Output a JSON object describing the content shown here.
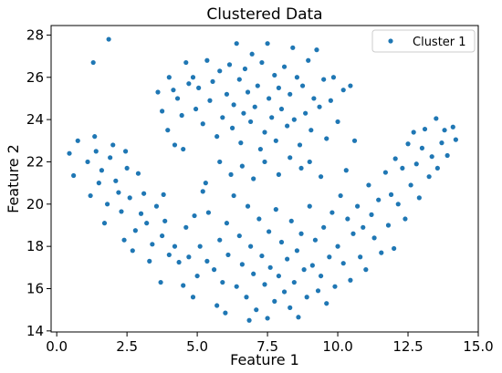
{
  "chart_data": {
    "type": "scatter",
    "title": "Clustered Data",
    "xlabel": "Feature 1",
    "ylabel": "Feature 2",
    "xlim": [
      -0.2,
      15.0
    ],
    "ylim": [
      13.95,
      28.45
    ],
    "xticks": [
      0.0,
      2.5,
      5.0,
      7.5,
      10.0,
      12.5,
      15.0
    ],
    "xtick_labels": [
      "0.0",
      "2.5",
      "5.0",
      "7.5",
      "10.0",
      "12.5",
      "15.0"
    ],
    "yticks": [
      14,
      16,
      18,
      20,
      22,
      24,
      26,
      28
    ],
    "ytick_labels": [
      "14",
      "16",
      "18",
      "20",
      "22",
      "24",
      "26",
      "28"
    ],
    "grid": false,
    "legend": "top-right",
    "series": [
      {
        "name": "Cluster 1",
        "color": "#1f77b4",
        "points": [
          [
            1.85,
            27.8
          ],
          [
            1.3,
            26.7
          ],
          [
            0.45,
            22.4
          ],
          [
            0.6,
            21.35
          ],
          [
            0.75,
            23.0
          ],
          [
            1.1,
            22.0
          ],
          [
            1.2,
            20.4
          ],
          [
            1.35,
            23.2
          ],
          [
            1.4,
            22.5
          ],
          [
            1.5,
            21.0
          ],
          [
            1.6,
            21.6
          ],
          [
            1.7,
            19.1
          ],
          [
            1.8,
            20.0
          ],
          [
            1.9,
            22.2
          ],
          [
            2.0,
            22.8
          ],
          [
            2.1,
            21.1
          ],
          [
            2.2,
            20.55
          ],
          [
            2.3,
            19.65
          ],
          [
            2.4,
            18.3
          ],
          [
            2.45,
            22.5
          ],
          [
            2.5,
            21.7
          ],
          [
            2.6,
            20.3
          ],
          [
            2.7,
            17.8
          ],
          [
            2.8,
            18.75
          ],
          [
            2.9,
            21.45
          ],
          [
            3.0,
            19.55
          ],
          [
            3.1,
            20.5
          ],
          [
            3.2,
            19.1
          ],
          [
            3.3,
            17.3
          ],
          [
            3.4,
            18.1
          ],
          [
            3.55,
            19.9
          ],
          [
            3.7,
            16.3
          ],
          [
            3.75,
            18.5
          ],
          [
            3.8,
            20.45
          ],
          [
            3.85,
            19.2
          ],
          [
            4.0,
            17.6
          ],
          [
            4.2,
            18.0
          ],
          [
            4.35,
            17.25
          ],
          [
            4.5,
            16.15
          ],
          [
            4.6,
            18.9
          ],
          [
            4.7,
            17.5
          ],
          [
            4.85,
            15.6
          ],
          [
            4.9,
            19.45
          ],
          [
            5.0,
            16.6
          ],
          [
            5.1,
            18.0
          ],
          [
            5.2,
            20.6
          ],
          [
            5.35,
            17.3
          ],
          [
            5.4,
            19.6
          ],
          [
            5.6,
            16.9
          ],
          [
            5.7,
            15.2
          ],
          [
            5.8,
            18.3
          ],
          [
            5.9,
            16.3
          ],
          [
            6.0,
            14.85
          ],
          [
            6.05,
            19.1
          ],
          [
            6.1,
            17.6
          ],
          [
            6.3,
            20.4
          ],
          [
            6.4,
            16.1
          ],
          [
            6.5,
            18.5
          ],
          [
            6.6,
            17.15
          ],
          [
            6.75,
            15.6
          ],
          [
            6.8,
            19.9
          ],
          [
            6.85,
            14.5
          ],
          [
            6.9,
            18.0
          ],
          [
            7.0,
            16.7
          ],
          [
            7.1,
            15.0
          ],
          [
            7.2,
            19.3
          ],
          [
            7.3,
            17.55
          ],
          [
            7.4,
            16.2
          ],
          [
            7.5,
            14.6
          ],
          [
            7.55,
            18.7
          ],
          [
            7.6,
            17.0
          ],
          [
            7.75,
            15.4
          ],
          [
            7.8,
            19.75
          ],
          [
            7.9,
            16.6
          ],
          [
            8.0,
            18.2
          ],
          [
            8.1,
            15.85
          ],
          [
            8.2,
            17.4
          ],
          [
            8.3,
            15.1
          ],
          [
            8.35,
            19.2
          ],
          [
            8.45,
            16.3
          ],
          [
            8.55,
            17.8
          ],
          [
            8.6,
            14.65
          ],
          [
            8.7,
            18.6
          ],
          [
            8.8,
            16.9
          ],
          [
            8.9,
            15.6
          ],
          [
            9.0,
            19.9
          ],
          [
            9.1,
            17.1
          ],
          [
            9.2,
            18.3
          ],
          [
            9.3,
            15.9
          ],
          [
            9.4,
            16.6
          ],
          [
            9.5,
            18.9
          ],
          [
            9.6,
            15.3
          ],
          [
            9.7,
            17.5
          ],
          [
            9.8,
            19.6
          ],
          [
            9.9,
            16.1
          ],
          [
            10.0,
            18.0
          ],
          [
            10.1,
            20.4
          ],
          [
            10.2,
            17.2
          ],
          [
            10.35,
            19.3
          ],
          [
            10.45,
            16.4
          ],
          [
            10.55,
            18.6
          ],
          [
            10.7,
            19.9
          ],
          [
            10.8,
            17.5
          ],
          [
            10.9,
            18.9
          ],
          [
            11.0,
            16.9
          ],
          [
            11.1,
            20.9
          ],
          [
            11.2,
            19.5
          ],
          [
            11.3,
            18.4
          ],
          [
            11.45,
            20.2
          ],
          [
            11.55,
            17.7
          ],
          [
            11.7,
            21.5
          ],
          [
            11.8,
            19.0
          ],
          [
            11.9,
            20.45
          ],
          [
            12.0,
            17.9
          ],
          [
            12.05,
            22.15
          ],
          [
            12.15,
            20.0
          ],
          [
            12.3,
            21.7
          ],
          [
            12.4,
            19.3
          ],
          [
            12.5,
            22.85
          ],
          [
            12.6,
            20.9
          ],
          [
            12.7,
            23.4
          ],
          [
            12.8,
            21.9
          ],
          [
            12.9,
            20.3
          ],
          [
            13.0,
            22.65
          ],
          [
            13.1,
            23.55
          ],
          [
            13.25,
            21.3
          ],
          [
            13.35,
            22.25
          ],
          [
            13.5,
            24.05
          ],
          [
            13.55,
            21.7
          ],
          [
            13.7,
            22.9
          ],
          [
            13.8,
            23.5
          ],
          [
            13.9,
            22.3
          ],
          [
            14.1,
            23.65
          ],
          [
            14.2,
            23.05
          ],
          [
            4.0,
            26.0
          ],
          [
            4.15,
            25.4
          ],
          [
            4.3,
            25.0
          ],
          [
            4.45,
            24.2
          ],
          [
            4.6,
            26.7
          ],
          [
            4.7,
            25.7
          ],
          [
            4.85,
            26.0
          ],
          [
            4.95,
            24.5
          ],
          [
            5.05,
            25.5
          ],
          [
            5.2,
            23.8
          ],
          [
            5.35,
            26.8
          ],
          [
            5.45,
            24.9
          ],
          [
            5.55,
            25.8
          ],
          [
            5.7,
            23.2
          ],
          [
            5.8,
            26.3
          ],
          [
            5.9,
            24.1
          ],
          [
            6.05,
            25.2
          ],
          [
            6.15,
            26.6
          ],
          [
            6.25,
            23.6
          ],
          [
            6.3,
            24.7
          ],
          [
            6.4,
            27.6
          ],
          [
            6.5,
            25.9
          ],
          [
            6.55,
            22.9
          ],
          [
            6.65,
            24.3
          ],
          [
            6.7,
            26.4
          ],
          [
            6.8,
            25.3
          ],
          [
            6.9,
            23.9
          ],
          [
            6.95,
            27.1
          ],
          [
            7.05,
            24.6
          ],
          [
            7.15,
            25.6
          ],
          [
            7.25,
            22.6
          ],
          [
            7.3,
            26.7
          ],
          [
            7.4,
            23.4
          ],
          [
            7.5,
            27.6
          ],
          [
            7.55,
            25.0
          ],
          [
            7.65,
            24.1
          ],
          [
            7.75,
            26.1
          ],
          [
            7.8,
            23.0
          ],
          [
            7.9,
            25.5
          ],
          [
            8.0,
            24.5
          ],
          [
            8.1,
            26.5
          ],
          [
            8.2,
            23.7
          ],
          [
            8.3,
            25.2
          ],
          [
            8.4,
            27.4
          ],
          [
            8.45,
            24.0
          ],
          [
            8.55,
            26.0
          ],
          [
            8.65,
            22.8
          ],
          [
            8.75,
            25.6
          ],
          [
            8.85,
            24.3
          ],
          [
            8.95,
            26.8
          ],
          [
            9.05,
            23.5
          ],
          [
            9.15,
            25.0
          ],
          [
            9.25,
            27.3
          ],
          [
            9.35,
            24.6
          ],
          [
            9.5,
            25.9
          ],
          [
            9.6,
            23.1
          ],
          [
            9.75,
            24.9
          ],
          [
            9.85,
            26.0
          ],
          [
            10.0,
            23.9
          ],
          [
            10.2,
            25.4
          ],
          [
            10.45,
            25.6
          ],
          [
            10.6,
            23.0
          ],
          [
            10.3,
            21.6
          ],
          [
            9.4,
            21.3
          ],
          [
            9.0,
            22.0
          ],
          [
            8.7,
            21.7
          ],
          [
            8.3,
            22.2
          ],
          [
            7.9,
            21.4
          ],
          [
            7.4,
            22.0
          ],
          [
            7.0,
            21.2
          ],
          [
            6.6,
            21.8
          ],
          [
            6.2,
            21.4
          ],
          [
            5.8,
            22.0
          ],
          [
            5.3,
            21.0
          ],
          [
            3.6,
            25.3
          ],
          [
            3.75,
            24.4
          ],
          [
            3.95,
            23.5
          ],
          [
            4.2,
            22.8
          ],
          [
            4.5,
            22.6
          ]
        ]
      }
    ]
  }
}
